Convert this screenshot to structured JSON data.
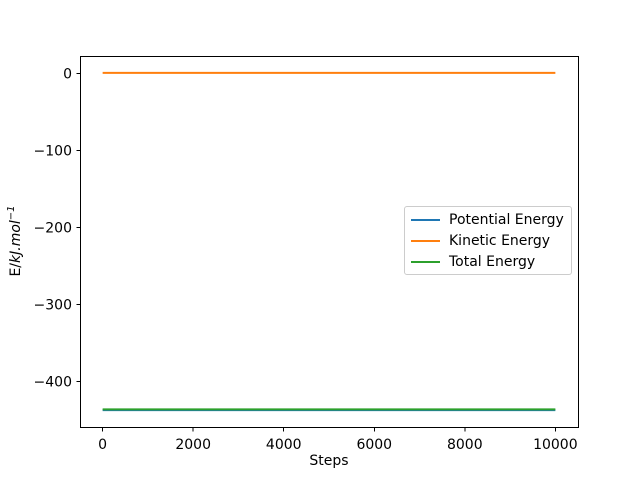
{
  "chart_data": {
    "type": "line",
    "title": "",
    "xlabel": "Steps",
    "ylabel": "E/kJ.mol−1",
    "ylabel_parts": {
      "prefix": "E/",
      "italic": "kJ.mol",
      "superscript": "−1"
    },
    "x": [
      0,
      10000
    ],
    "series": [
      {
        "name": "Potential Energy",
        "color": "#1f77b4",
        "values": [
          -437,
          -437
        ]
      },
      {
        "name": "Kinetic Energy",
        "color": "#ff7f0e",
        "values": [
          1,
          1
        ]
      },
      {
        "name": "Total Energy",
        "color": "#2ca02c",
        "values": [
          -436,
          -436
        ]
      }
    ],
    "xticks": [
      0,
      2000,
      4000,
      6000,
      8000,
      10000
    ],
    "yticks": [
      0,
      -100,
      -200,
      -300,
      -400
    ],
    "xlim": [
      -500,
      10500
    ],
    "ylim": [
      -458.9,
      22.9
    ],
    "grid": false,
    "legend_position": "center right",
    "axis_color": "#000000",
    "background_color": "#ffffff"
  }
}
